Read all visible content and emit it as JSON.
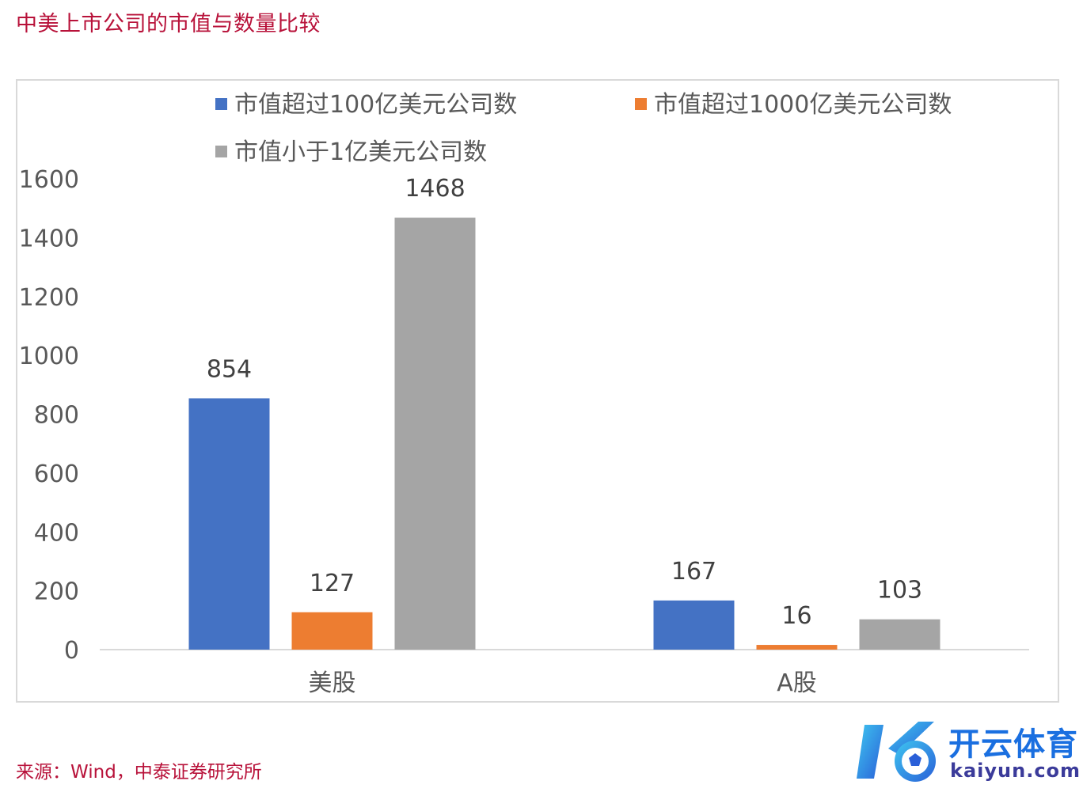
{
  "page": {
    "title": "中美上市公司的市值与数量比较",
    "source": "来源：Wind，中泰证券研究所"
  },
  "logo": {
    "title": "开云体育",
    "subtitle": "kaiyun.com"
  },
  "chart_data": {
    "type": "bar",
    "categories": [
      "美股",
      "A股"
    ],
    "series": [
      {
        "name": "市值超过100亿美元公司数",
        "color": "#4472c4",
        "values": [
          854,
          167
        ]
      },
      {
        "name": "市值超过1000亿美元公司数",
        "color": "#ed7d31",
        "values": [
          127,
          16
        ]
      },
      {
        "name": "市值小于1亿美元公司数",
        "color": "#a5a5a5",
        "values": [
          1468,
          103
        ]
      }
    ],
    "ylim": [
      0,
      1600
    ],
    "yticks": [
      0,
      200,
      400,
      600,
      800,
      1000,
      1200,
      1400,
      1600
    ],
    "grid": false,
    "legend": "top",
    "data_labels": true
  }
}
